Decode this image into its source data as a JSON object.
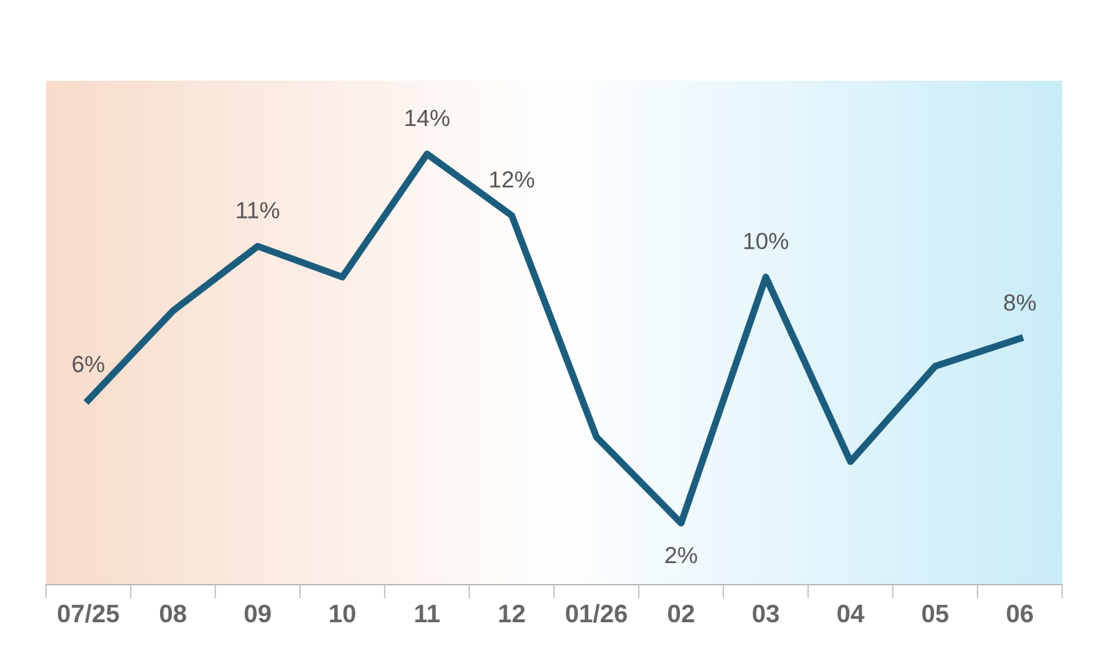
{
  "chart_data": {
    "type": "line",
    "categories": [
      "07/25",
      "08",
      "09",
      "10",
      "11",
      "12",
      "01/26",
      "02",
      "03",
      "04",
      "05",
      "06"
    ],
    "series": [
      {
        "color": "#1c5d7e",
        "values": [
          6,
          8.9,
          11,
          10.0,
          14,
          12,
          4.8,
          2,
          10,
          4.0,
          7.1,
          8
        ],
        "value_labels": [
          "6%",
          null,
          "11%",
          null,
          "14%",
          "12%",
          null,
          "2%",
          "10%",
          null,
          null,
          "8%"
        ]
      }
    ],
    "tick_labels": "x",
    "grid": false,
    "legend": false,
    "marker": "none",
    "line_style": "solid"
  }
}
